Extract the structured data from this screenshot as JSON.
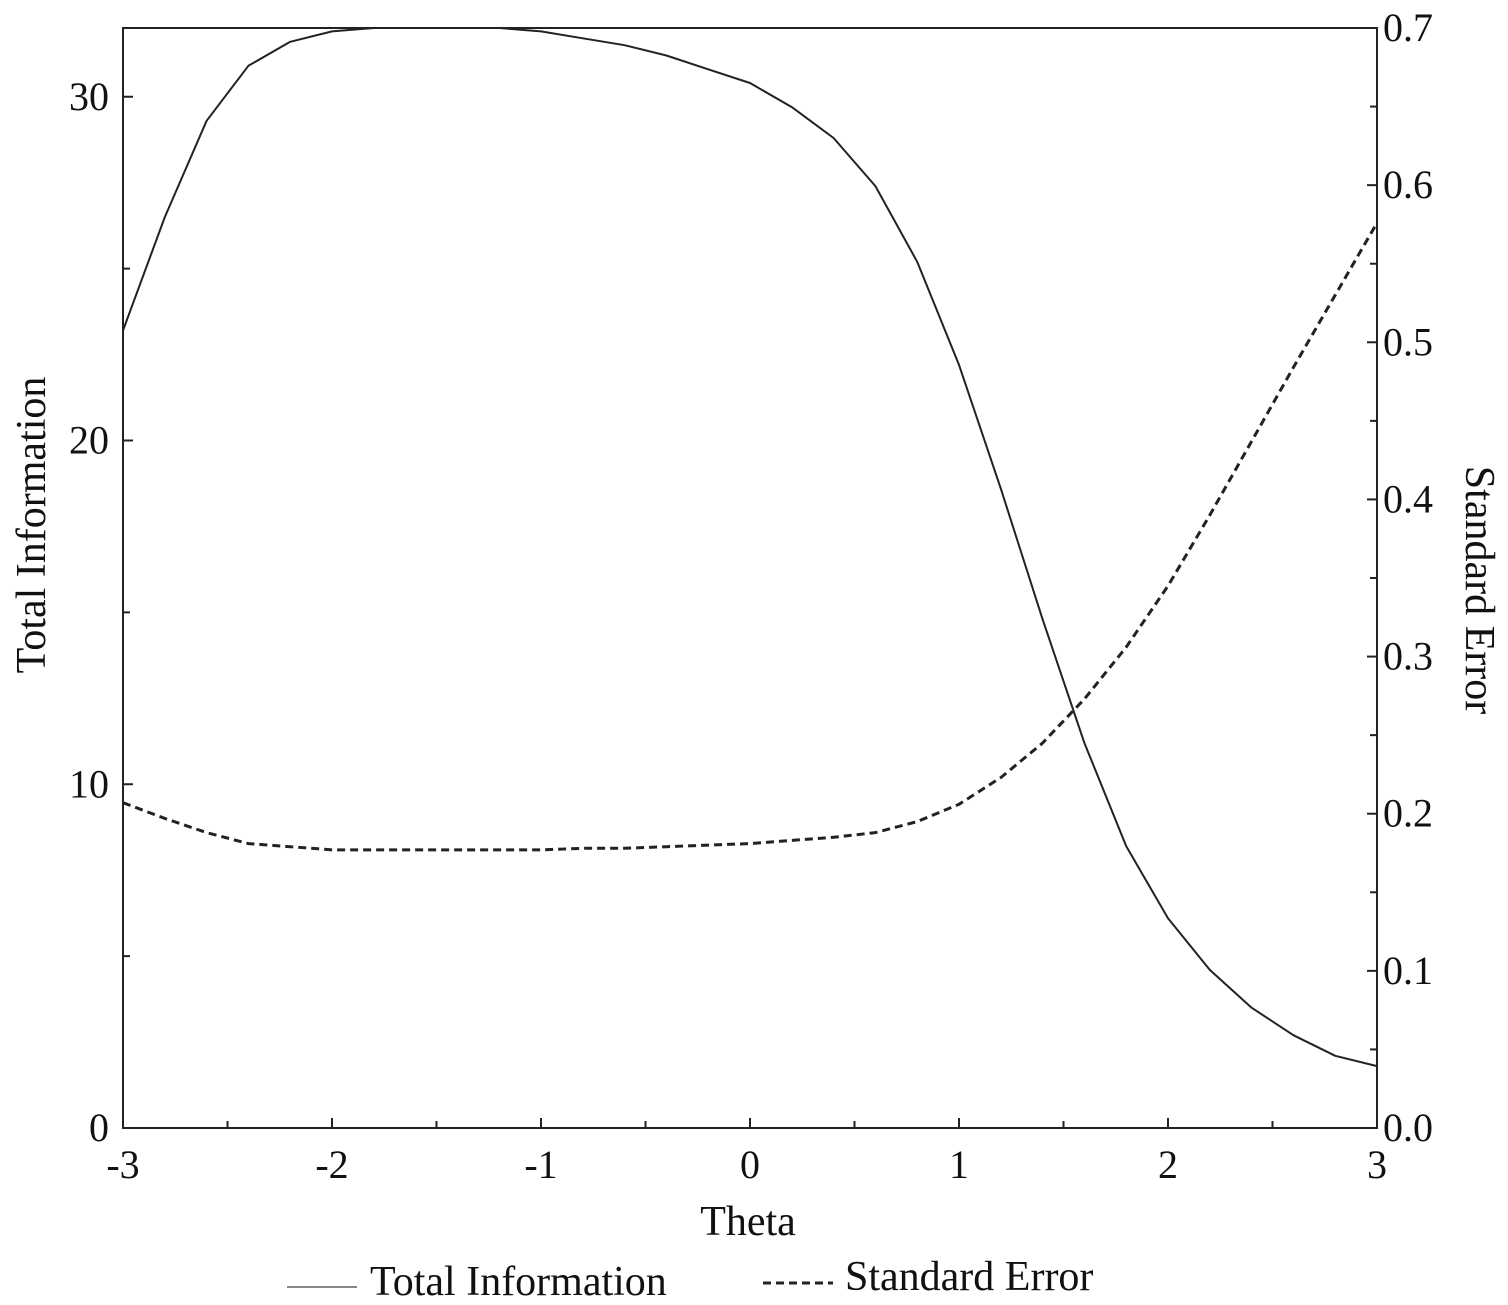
{
  "chart_data": {
    "type": "line",
    "title": "",
    "xlabel": "Theta",
    "ylabel_left": "Total Information",
    "ylabel_right": "Standard Error",
    "xlim": [
      -3,
      3
    ],
    "ylim_left": [
      0,
      32
    ],
    "ylim_right": [
      0.0,
      0.7
    ],
    "x_ticks": [
      "-3",
      "-2",
      "-1",
      "0",
      "1",
      "2",
      "3"
    ],
    "y_left_ticks": [
      "0",
      "10",
      "20",
      "30"
    ],
    "y_right_ticks": [
      "0.0",
      "0.1",
      "0.2",
      "0.3",
      "0.4",
      "0.5",
      "0.6",
      "0.7"
    ],
    "grid": false,
    "legend_position": "bottom",
    "series": [
      {
        "name": "Total Information",
        "axis": "left",
        "style": "solid",
        "color": "#222222",
        "points": [
          [
            -3.0,
            23.2
          ],
          [
            -2.8,
            26.5
          ],
          [
            -2.6,
            29.3
          ],
          [
            -2.4,
            30.9
          ],
          [
            -2.2,
            31.6
          ],
          [
            -2.0,
            31.9
          ],
          [
            -1.8,
            32.0
          ],
          [
            -1.6,
            32.0
          ],
          [
            -1.4,
            32.0
          ],
          [
            -1.2,
            32.0
          ],
          [
            -1.0,
            31.9
          ],
          [
            -0.8,
            31.7
          ],
          [
            -0.6,
            31.5
          ],
          [
            -0.4,
            31.2
          ],
          [
            -0.2,
            30.8
          ],
          [
            0.0,
            30.4
          ],
          [
            0.2,
            29.7
          ],
          [
            0.4,
            28.8
          ],
          [
            0.6,
            27.4
          ],
          [
            0.8,
            25.2
          ],
          [
            1.0,
            22.2
          ],
          [
            1.2,
            18.6
          ],
          [
            1.4,
            14.8
          ],
          [
            1.6,
            11.2
          ],
          [
            1.8,
            8.2
          ],
          [
            2.0,
            6.1
          ],
          [
            2.2,
            4.6
          ],
          [
            2.4,
            3.5
          ],
          [
            2.6,
            2.7
          ],
          [
            2.8,
            2.1
          ],
          [
            3.0,
            1.8
          ]
        ]
      },
      {
        "name": "Standard Error",
        "axis": "right",
        "style": "dashed",
        "color": "#222222",
        "points": [
          [
            -3.0,
            0.207
          ],
          [
            -2.8,
            0.197
          ],
          [
            -2.6,
            0.188
          ],
          [
            -2.4,
            0.181
          ],
          [
            -2.2,
            0.179
          ],
          [
            -2.0,
            0.177
          ],
          [
            -1.8,
            0.177
          ],
          [
            -1.6,
            0.177
          ],
          [
            -1.4,
            0.177
          ],
          [
            -1.2,
            0.177
          ],
          [
            -1.0,
            0.177
          ],
          [
            -0.8,
            0.178
          ],
          [
            -0.6,
            0.178
          ],
          [
            -0.4,
            0.179
          ],
          [
            -0.2,
            0.18
          ],
          [
            0.0,
            0.181
          ],
          [
            0.2,
            0.183
          ],
          [
            0.4,
            0.185
          ],
          [
            0.6,
            0.188
          ],
          [
            0.8,
            0.195
          ],
          [
            1.0,
            0.206
          ],
          [
            1.2,
            0.223
          ],
          [
            1.4,
            0.245
          ],
          [
            1.6,
            0.273
          ],
          [
            1.8,
            0.306
          ],
          [
            2.0,
            0.345
          ],
          [
            2.2,
            0.39
          ],
          [
            2.4,
            0.437
          ],
          [
            2.6,
            0.484
          ],
          [
            2.8,
            0.53
          ],
          [
            3.0,
            0.576
          ]
        ]
      }
    ]
  }
}
